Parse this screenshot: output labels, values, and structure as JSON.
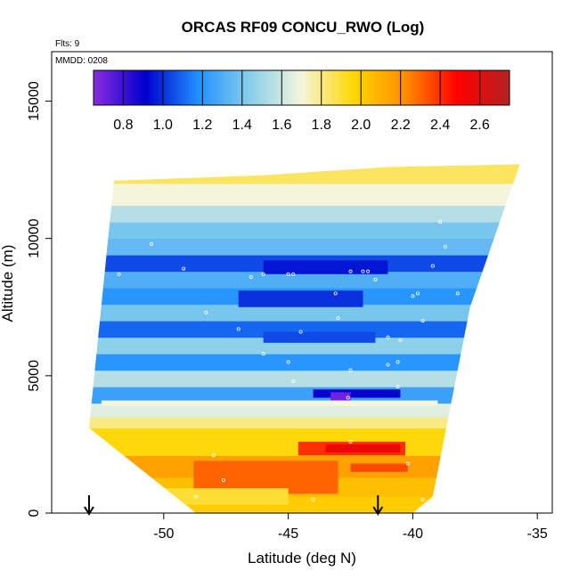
{
  "chart_data": {
    "type": "heatmap",
    "title": "ORCAS RF09 CONCU_RWO (Log)",
    "xlabel": "Latitude (deg N)",
    "ylabel": "Altitude (m)",
    "xlim": [
      -54.5,
      -34.4
    ],
    "ylim": [
      0,
      16800
    ],
    "x_ticks": [
      -50,
      -45,
      -40,
      -35
    ],
    "x_tick_labels": [
      "-50",
      "-45",
      "-40",
      "-35"
    ],
    "y_ticks": [
      0,
      5000,
      10000,
      15000
    ],
    "y_tick_labels": [
      "0",
      "5000",
      "10000",
      "15000"
    ],
    "annotations": {
      "flights": "Flts: 9",
      "date": "MMDD: 0208"
    },
    "colorbar": {
      "range": [
        0.65,
        2.75
      ],
      "ticks": [
        0.8,
        1.0,
        1.2,
        1.4,
        1.6,
        1.8,
        2.0,
        2.2,
        2.4,
        2.6
      ],
      "tick_labels": [
        "0.8",
        "1.0",
        "1.2",
        "1.4",
        "1.6",
        "1.8",
        "2.0",
        "2.2",
        "2.4",
        "2.6"
      ],
      "colors": [
        "#8a2be2",
        "#0000cd",
        "#1e90ff",
        "#87ceeb",
        "#f5f5dc",
        "#ffd700",
        "#ff8c00",
        "#ff0000",
        "#b22222"
      ]
    },
    "domain_outline": [
      [
        -53.0,
        3100
      ],
      [
        -52.0,
        12100
      ],
      [
        -46.0,
        12300
      ],
      [
        -41.0,
        12600
      ],
      [
        -35.7,
        12700
      ],
      [
        -37.7,
        7500
      ],
      [
        -39.2,
        600
      ],
      [
        -40.0,
        0
      ],
      [
        -48.7,
        0
      ]
    ],
    "bands": [
      {
        "y0": 0,
        "y1": 600,
        "value": 2.0
      },
      {
        "y0": 600,
        "y1": 1300,
        "value": 2.05
      },
      {
        "y0": 1300,
        "y1": 2100,
        "value": 2.15
      },
      {
        "y0": 2100,
        "y1": 3100,
        "value": 1.95
      },
      {
        "y0": 3100,
        "y1": 3500,
        "value": 1.8
      },
      {
        "y0": 3500,
        "y1": 4000,
        "value": 1.65
      },
      {
        "y0": 4000,
        "y1": 4600,
        "value": 1.25
      },
      {
        "y0": 4600,
        "y1": 5200,
        "value": 1.55
      },
      {
        "y0": 5200,
        "y1": 5800,
        "value": 1.2
      },
      {
        "y0": 5800,
        "y1": 6400,
        "value": 1.45
      },
      {
        "y0": 6400,
        "y1": 7000,
        "value": 1.1
      },
      {
        "y0": 7000,
        "y1": 7600,
        "value": 1.4
      },
      {
        "y0": 7600,
        "y1": 8200,
        "value": 1.2
      },
      {
        "y0": 8200,
        "y1": 8800,
        "value": 1.3
      },
      {
        "y0": 8800,
        "y1": 9400,
        "value": 1.05
      },
      {
        "y0": 9400,
        "y1": 10000,
        "value": 1.35
      },
      {
        "y0": 10000,
        "y1": 10600,
        "value": 1.4
      },
      {
        "y0": 10600,
        "y1": 11200,
        "value": 1.55
      },
      {
        "y0": 11200,
        "y1": 12000,
        "value": 1.7
      },
      {
        "y0": 12000,
        "y1": 12800,
        "value": 1.85
      }
    ],
    "patches": [
      {
        "x0": -44.6,
        "x1": -40.3,
        "y0": 2100,
        "y1": 2600,
        "value": 2.4
      },
      {
        "x0": -43.5,
        "x1": -40.5,
        "y0": 2200,
        "y1": 2500,
        "value": 2.55
      },
      {
        "x0": -48.8,
        "x1": -43.0,
        "y0": 700,
        "y1": 1900,
        "value": 2.3
      },
      {
        "x0": -42.5,
        "x1": -40.2,
        "y0": 1500,
        "y1": 1800,
        "value": 2.35
      },
      {
        "x0": -44.0,
        "x1": -40.5,
        "y0": 4200,
        "y1": 4500,
        "value": 0.9
      },
      {
        "x0": -43.3,
        "x1": -42.5,
        "y0": 4100,
        "y1": 4400,
        "value": 0.7
      },
      {
        "x0": -46.0,
        "x1": -41.0,
        "y0": 8700,
        "y1": 9200,
        "value": 0.95
      },
      {
        "x0": -47.0,
        "x1": -42.0,
        "y0": 7500,
        "y1": 8100,
        "value": 1.0
      },
      {
        "x0": -46.0,
        "x1": -41.5,
        "y0": 6200,
        "y1": 6600,
        "value": 1.05
      },
      {
        "x0": -51.0,
        "x1": -45.0,
        "y0": 300,
        "y1": 900,
        "value": 1.9
      },
      {
        "x0": -52.5,
        "x1": -39.0,
        "y0": 3900,
        "y1": 4100,
        "value": 1.7
      }
    ],
    "flight_markers": [
      -53.0,
      -41.4
    ],
    "sample_points": [
      [
        -44.8,
        8700
      ],
      [
        -45.0,
        8700
      ],
      [
        -46.5,
        8600
      ],
      [
        -46.0,
        8700
      ],
      [
        -42.5,
        8800
      ],
      [
        -42.0,
        8800
      ],
      [
        -41.8,
        8800
      ],
      [
        -41.5,
        8500
      ],
      [
        -43.1,
        8000
      ],
      [
        -40.0,
        7900
      ],
      [
        -39.8,
        8000
      ],
      [
        -44.5,
        6600
      ],
      [
        -43.0,
        7100
      ],
      [
        -41.0,
        6400
      ],
      [
        -40.5,
        6300
      ],
      [
        -46.0,
        5800
      ],
      [
        -47.0,
        6700
      ],
      [
        -45.0,
        5500
      ],
      [
        -42.5,
        5200
      ],
      [
        -41.0,
        5400
      ],
      [
        -40.6,
        5500
      ],
      [
        -44.8,
        4800
      ],
      [
        -42.6,
        4200
      ],
      [
        -40.6,
        4600
      ],
      [
        -51.8,
        8700
      ],
      [
        -50.5,
        9800
      ],
      [
        -49.2,
        8900
      ],
      [
        -48.3,
        7300
      ],
      [
        -38.9,
        10600
      ],
      [
        -38.7,
        9700
      ],
      [
        -38.2,
        8000
      ],
      [
        -39.6,
        7000
      ],
      [
        -39.2,
        9000
      ],
      [
        -48.0,
        2100
      ],
      [
        -47.6,
        1200
      ],
      [
        -42.5,
        2600
      ],
      [
        -40.2,
        1800
      ],
      [
        -39.6,
        500
      ],
      [
        -44.0,
        500
      ],
      [
        -48.7,
        600
      ]
    ]
  }
}
